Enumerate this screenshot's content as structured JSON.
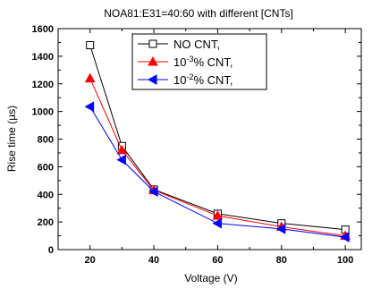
{
  "chart_data": {
    "type": "line",
    "title": "NOA81:E31=40:60 with different [CNTs]",
    "xlabel": "Voltage (V)",
    "ylabel": "Rise time (µs)",
    "x": [
      20,
      30,
      40,
      60,
      80,
      100
    ],
    "xlim": [
      10,
      105
    ],
    "ylim": [
      0,
      1600
    ],
    "xticks": [
      20,
      40,
      60,
      80,
      100
    ],
    "yticks": [
      0,
      200,
      400,
      600,
      800,
      1000,
      1200,
      1400,
      1600
    ],
    "grid": false,
    "legend_position": "top-right",
    "series": [
      {
        "name": "NO CNT,",
        "color": "#000000",
        "marker": "open-square",
        "values": [
          1480,
          750,
          435,
          260,
          190,
          145
        ]
      },
      {
        "name_parts": [
          "10",
          "-3",
          "% CNT,"
        ],
        "color": "#ff0000",
        "marker": "filled-triangle-up",
        "values": [
          1240,
          720,
          430,
          245,
          165,
          100
        ]
      },
      {
        "name_parts": [
          "10",
          "-2",
          "% CNT,"
        ],
        "color": "#0000ff",
        "marker": "filled-triangle-left",
        "values": [
          1035,
          650,
          420,
          190,
          150,
          90
        ]
      }
    ]
  }
}
